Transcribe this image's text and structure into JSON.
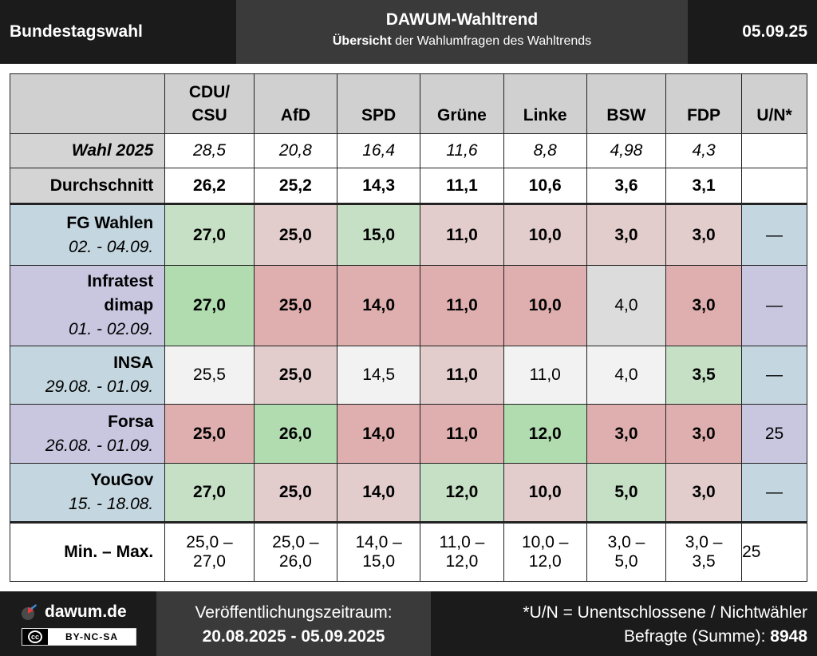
{
  "header": {
    "left": "Bundestagswahl",
    "title": "DAWUM-Wahltrend",
    "subtitle_bold": "Übersicht",
    "subtitle_rest": " der Wahlumfragen des Wahltrends",
    "date": "05.09.25"
  },
  "table": {
    "columns": [
      {
        "line1": "CDU/",
        "line2": "CSU"
      },
      {
        "line1": "",
        "line2": "AfD"
      },
      {
        "line1": "",
        "line2": "SPD"
      },
      {
        "line1": "",
        "line2": "Grüne"
      },
      {
        "line1": "",
        "line2": "Linke"
      },
      {
        "line1": "",
        "line2": "BSW"
      },
      {
        "line1": "",
        "line2": "FDP"
      },
      {
        "line1": "",
        "line2": "U/N*"
      }
    ],
    "election": {
      "label": "Wahl 2025",
      "values": [
        "28,5",
        "20,8",
        "16,4",
        "11,6",
        "8,8",
        "4,98",
        "4,3",
        ""
      ]
    },
    "average": {
      "label": "Durchschnitt",
      "values": [
        "26,2",
        "25,2",
        "14,3",
        "11,1",
        "10,6",
        "3,6",
        "3,1",
        ""
      ]
    },
    "polls": [
      {
        "institute": "FG Wahlen",
        "institute2": "",
        "date": "02. - 04.09.",
        "rowcolor": "#c4d6df",
        "cells": [
          {
            "v": "27,0",
            "b": true,
            "c": "#c6e0c6"
          },
          {
            "v": "25,0",
            "b": true,
            "c": "#e2cccc"
          },
          {
            "v": "15,0",
            "b": true,
            "c": "#c6e0c6"
          },
          {
            "v": "11,0",
            "b": true,
            "c": "#e2cccc"
          },
          {
            "v": "10,0",
            "b": true,
            "c": "#e2cccc"
          },
          {
            "v": "3,0",
            "b": true,
            "c": "#e2cccc"
          },
          {
            "v": "3,0",
            "b": true,
            "c": "#e2cccc"
          },
          {
            "v": "—",
            "b": false,
            "c": "#c4d6df"
          }
        ]
      },
      {
        "institute": "Infratest",
        "institute2": "dimap",
        "date": "01. - 02.09.",
        "rowcolor": "#c9c6e0",
        "cells": [
          {
            "v": "27,0",
            "b": true,
            "c": "#b0dcb0"
          },
          {
            "v": "25,0",
            "b": true,
            "c": "#dfafaf"
          },
          {
            "v": "14,0",
            "b": true,
            "c": "#dfafaf"
          },
          {
            "v": "11,0",
            "b": true,
            "c": "#dfafaf"
          },
          {
            "v": "10,0",
            "b": true,
            "c": "#dfafaf"
          },
          {
            "v": "4,0",
            "b": false,
            "c": "#dcdcdc"
          },
          {
            "v": "3,0",
            "b": true,
            "c": "#dfafaf"
          },
          {
            "v": "—",
            "b": false,
            "c": "#c9c6e0"
          }
        ]
      },
      {
        "institute": "INSA",
        "institute2": "",
        "date": "29.08. - 01.09.",
        "rowcolor": "#c4d6df",
        "cells": [
          {
            "v": "25,5",
            "b": false,
            "c": "#f2f2f2"
          },
          {
            "v": "25,0",
            "b": true,
            "c": "#e2cccc"
          },
          {
            "v": "14,5",
            "b": false,
            "c": "#f2f2f2"
          },
          {
            "v": "11,0",
            "b": true,
            "c": "#e2cccc"
          },
          {
            "v": "11,0",
            "b": false,
            "c": "#f2f2f2"
          },
          {
            "v": "4,0",
            "b": false,
            "c": "#f2f2f2"
          },
          {
            "v": "3,5",
            "b": true,
            "c": "#c6e0c6"
          },
          {
            "v": "—",
            "b": false,
            "c": "#c4d6df"
          }
        ]
      },
      {
        "institute": "Forsa",
        "institute2": "",
        "date": "26.08. - 01.09.",
        "rowcolor": "#c9c6e0",
        "cells": [
          {
            "v": "25,0",
            "b": true,
            "c": "#dfafaf"
          },
          {
            "v": "26,0",
            "b": true,
            "c": "#b0dcb0"
          },
          {
            "v": "14,0",
            "b": true,
            "c": "#dfafaf"
          },
          {
            "v": "11,0",
            "b": true,
            "c": "#dfafaf"
          },
          {
            "v": "12,0",
            "b": true,
            "c": "#b0dcb0"
          },
          {
            "v": "3,0",
            "b": true,
            "c": "#dfafaf"
          },
          {
            "v": "3,0",
            "b": true,
            "c": "#dfafaf"
          },
          {
            "v": "25",
            "b": false,
            "c": "#c9c6e0"
          }
        ]
      },
      {
        "institute": "YouGov",
        "institute2": "",
        "date": "15. - 18.08.",
        "rowcolor": "#c4d6df",
        "cells": [
          {
            "v": "27,0",
            "b": true,
            "c": "#c6e0c6"
          },
          {
            "v": "25,0",
            "b": true,
            "c": "#e2cccc"
          },
          {
            "v": "14,0",
            "b": true,
            "c": "#e2cccc"
          },
          {
            "v": "12,0",
            "b": true,
            "c": "#c6e0c6"
          },
          {
            "v": "10,0",
            "b": true,
            "c": "#e2cccc"
          },
          {
            "v": "5,0",
            "b": true,
            "c": "#c6e0c6"
          },
          {
            "v": "3,0",
            "b": true,
            "c": "#e2cccc"
          },
          {
            "v": "—",
            "b": false,
            "c": "#c4d6df"
          }
        ]
      }
    ],
    "minmax": {
      "label": "Min. – Max.",
      "values": [
        {
          "top": "25,0 –",
          "bottom": "27,0"
        },
        {
          "top": "25,0 –",
          "bottom": "26,0"
        },
        {
          "top": "14,0 –",
          "bottom": "15,0"
        },
        {
          "top": "11,0 –",
          "bottom": "12,0"
        },
        {
          "top": "10,0 –",
          "bottom": "12,0"
        },
        {
          "top": "3,0 –",
          "bottom": "5,0"
        },
        {
          "top": "3,0 –",
          "bottom": "3,5"
        }
      ],
      "un": "25"
    }
  },
  "footer": {
    "site": "dawum.de",
    "license": "BY-NC-SA",
    "license_symbol": "cc",
    "period_label": "Veröffentlichungszeitraum:",
    "period": "20.08.2025 - 05.09.2025",
    "note": "*U/N = Unentschlossene / Nichtwähler",
    "respondents_label": "Befragte (Summe): ",
    "respondents": "8948"
  }
}
